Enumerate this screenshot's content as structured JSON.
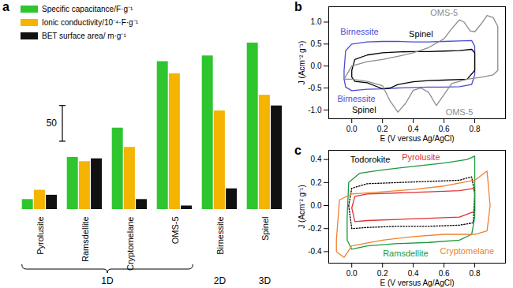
{
  "chart_data": [
    {
      "panel": "a",
      "type": "bar",
      "legend": "top-left",
      "tick_labels": "x",
      "categories": [
        "Pyrolusite",
        "Ramsdellite",
        "Cryptomelane",
        "OMS-5",
        "Birnessite",
        "Spinel"
      ],
      "series": [
        {
          "name": "Specific capacitance/F·g⁻¹",
          "color": "#2fc52f",
          "values": [
            14,
            73,
            114,
            207,
            215,
            233
          ]
        },
        {
          "name": "Ionic conductivity/10⁻⁴·F·g⁻¹",
          "color": "#f4b400",
          "values": [
            27,
            67,
            87,
            190,
            138,
            160
          ]
        },
        {
          "name": "BET surface area/ m·g⁻¹",
          "color": "#111111",
          "values": [
            20,
            71,
            14,
            5,
            29,
            145
          ]
        }
      ],
      "scale_bar": 50,
      "groups": [
        {
          "label": "1D",
          "categories": [
            "Pyrolusite",
            "Ramsdellite",
            "Cryptomelane",
            "OMS-5"
          ]
        },
        {
          "label": "2D",
          "categories": [
            "Birnessite"
          ]
        },
        {
          "label": "3D",
          "categories": [
            "Spinel"
          ]
        }
      ]
    },
    {
      "panel": "b",
      "type": "line",
      "xlabel": "E (V versus Ag/AgCl)",
      "ylabel": "J (Acm⁻² g⁻¹)",
      "xlim": [
        -0.15,
        1.0
      ],
      "xticks": [
        {
          "value": 0,
          "label": "0.0"
        },
        0.2,
        0.4,
        0.6,
        0.8
      ],
      "ylim": [
        -1.2,
        1.35
      ],
      "yticks": [
        {
          "value": -1,
          "label": "-1.0"
        },
        -0.5,
        {
          "value": 0,
          "label": "0.0"
        },
        0.5,
        {
          "value": 1,
          "label": "1.0"
        }
      ],
      "series": [
        {
          "name": "Birnessite",
          "color": "#4b4bd2",
          "line_style": "solid",
          "x": [
            -0.05,
            -0.04,
            0.0,
            0.1,
            0.2,
            0.3,
            0.4,
            0.5,
            0.6,
            0.7,
            0.78,
            0.8,
            0.8,
            0.78,
            0.7,
            0.6,
            0.5,
            0.4,
            0.3,
            0.2,
            0.1,
            0.0,
            -0.04,
            -0.05,
            -0.05
          ],
          "values": [
            -0.1,
            0.35,
            0.5,
            0.55,
            0.56,
            0.56,
            0.55,
            0.55,
            0.56,
            0.57,
            0.58,
            0.45,
            -0.2,
            -0.42,
            -0.47,
            -0.48,
            -0.48,
            -0.49,
            -0.5,
            -0.52,
            -0.53,
            -0.56,
            -0.48,
            -0.3,
            -0.1
          ]
        },
        {
          "name": "Spinel",
          "color": "#000000",
          "line_style": "solid",
          "x": [
            0.0,
            0.02,
            0.1,
            0.2,
            0.3,
            0.4,
            0.5,
            0.6,
            0.7,
            0.78,
            0.8,
            0.8,
            0.75,
            0.6,
            0.5,
            0.4,
            0.3,
            0.25,
            0.2,
            0.15,
            0.1,
            0.02,
            0.0,
            0.0
          ],
          "values": [
            -0.1,
            0.15,
            0.25,
            0.3,
            0.32,
            0.33,
            0.33,
            0.34,
            0.35,
            0.38,
            0.3,
            -0.1,
            -0.3,
            -0.32,
            -0.33,
            -0.36,
            -0.42,
            -0.5,
            -0.52,
            -0.45,
            -0.38,
            -0.35,
            -0.25,
            -0.1
          ]
        },
        {
          "name": "OMS-5",
          "color": "#8c8c8c",
          "line_style": "solid",
          "x": [
            -0.05,
            0.0,
            0.1,
            0.2,
            0.3,
            0.4,
            0.5,
            0.6,
            0.65,
            0.7,
            0.73,
            0.77,
            0.8,
            0.84,
            0.88,
            0.92,
            0.95,
            0.95,
            0.92,
            0.85,
            0.75,
            0.65,
            0.6,
            0.55,
            0.5,
            0.45,
            0.4,
            0.35,
            0.3,
            0.25,
            0.2,
            0.1,
            0.0,
            -0.05,
            -0.05
          ],
          "values": [
            -0.3,
            0.0,
            0.1,
            0.15,
            0.22,
            0.3,
            0.42,
            0.62,
            0.85,
            1.05,
            1.0,
            0.8,
            0.78,
            0.95,
            1.15,
            1.1,
            0.9,
            -0.1,
            -0.2,
            -0.25,
            -0.3,
            -0.4,
            -0.65,
            -0.9,
            -0.6,
            -0.5,
            -0.55,
            -0.85,
            -1.05,
            -0.8,
            -0.45,
            -0.35,
            -0.3,
            -0.3,
            -0.3
          ]
        }
      ],
      "annotations": [
        {
          "text": "Birnessite",
          "x": 0.05,
          "y": 0.78
        },
        {
          "text": "Spinel",
          "x": 0.45,
          "y": 0.72
        },
        {
          "text": "OMS-5",
          "x": 0.6,
          "y": 1.2
        },
        {
          "text": "Birnessite",
          "x": 0.03,
          "y": -0.75
        },
        {
          "text": "Spinel",
          "x": 0.08,
          "y": -1.0
        },
        {
          "text": "OMS-5",
          "x": 0.7,
          "y": -1.05
        }
      ]
    },
    {
      "panel": "c",
      "type": "line",
      "xlabel": "E (V versus Ag/AgCl)",
      "ylabel": "J (Acm⁻² g⁻¹)",
      "xlim": [
        -0.15,
        1.0
      ],
      "xticks": [
        {
          "value": 0,
          "label": "0.0"
        },
        0.2,
        0.4,
        0.6,
        0.8
      ],
      "ylim": [
        -0.5,
        0.48
      ],
      "yticks": [
        -0.4,
        -0.2,
        {
          "value": 0,
          "label": "0.0"
        },
        0.2,
        0.4
      ],
      "series": [
        {
          "name": "Todorokite",
          "color": "#000000",
          "line_style": "dotted",
          "x": [
            -0.02,
            0.0,
            0.1,
            0.3,
            0.5,
            0.7,
            0.78,
            0.8,
            0.79,
            0.7,
            0.5,
            0.3,
            0.1,
            0.0,
            -0.02
          ],
          "values": [
            0.0,
            0.15,
            0.19,
            0.2,
            0.21,
            0.22,
            0.25,
            0.1,
            -0.15,
            -0.17,
            -0.18,
            -0.18,
            -0.19,
            -0.2,
            0.0
          ]
        },
        {
          "name": "Pyrolusite",
          "color": "#e03030",
          "line_style": "solid",
          "x": [
            0.0,
            0.02,
            0.1,
            0.3,
            0.5,
            0.7,
            0.8,
            0.8,
            0.7,
            0.5,
            0.3,
            0.1,
            0.02,
            0.0
          ],
          "values": [
            -0.02,
            0.08,
            0.1,
            0.11,
            0.12,
            0.13,
            0.15,
            -0.05,
            -0.1,
            -0.11,
            -0.12,
            -0.13,
            -0.14,
            -0.02
          ]
        },
        {
          "name": "Ramsdellite",
          "color": "#1a9a3a",
          "line_style": "solid",
          "x": [
            -0.03,
            -0.02,
            0.05,
            0.2,
            0.4,
            0.6,
            0.75,
            0.8,
            0.8,
            0.78,
            0.7,
            0.5,
            0.3,
            0.1,
            0.0,
            -0.03,
            -0.03
          ],
          "values": [
            -0.1,
            0.2,
            0.28,
            0.31,
            0.34,
            0.37,
            0.4,
            0.43,
            -0.1,
            -0.25,
            -0.3,
            -0.32,
            -0.33,
            -0.35,
            -0.38,
            -0.3,
            -0.1
          ]
        },
        {
          "name": "Cryptomelane",
          "color": "#f08030",
          "line_style": "solid",
          "x": [
            -0.1,
            -0.08,
            0.0,
            0.2,
            0.4,
            0.6,
            0.8,
            0.88,
            0.9,
            0.88,
            0.8,
            0.6,
            0.4,
            0.2,
            0.0,
            -0.05,
            -0.1,
            -0.1
          ],
          "values": [
            -0.3,
            0.05,
            0.1,
            0.12,
            0.14,
            0.17,
            0.22,
            0.3,
            0.0,
            -0.22,
            -0.25,
            -0.25,
            -0.27,
            -0.3,
            -0.35,
            -0.45,
            -0.4,
            -0.3
          ]
        }
      ],
      "annotations": [
        {
          "text": "Todorokite",
          "x": 0.12,
          "y": 0.4
        },
        {
          "text": "Pyrolusite",
          "x": 0.45,
          "y": 0.42
        },
        {
          "text": "Ramsdellite",
          "x": 0.35,
          "y": -0.42
        },
        {
          "text": "Cryptomelane",
          "x": 0.75,
          "y": -0.4
        }
      ]
    }
  ]
}
